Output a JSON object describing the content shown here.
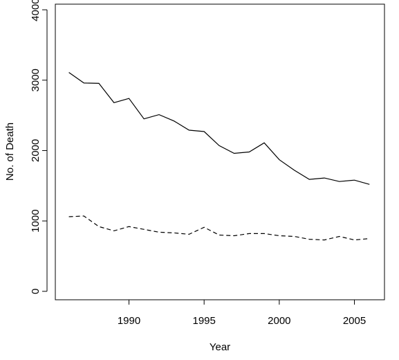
{
  "chart_data": {
    "type": "line",
    "title": "",
    "xlabel": "Year",
    "ylabel": "No. of Death",
    "xlim": [
      1985.1,
      2007.0
    ],
    "ylim": [
      -120,
      4080
    ],
    "x_ticks": [
      1990,
      1995,
      2000,
      2005
    ],
    "y_ticks": [
      0,
      1000,
      2000,
      3000,
      4000
    ],
    "grid": false,
    "legend": "none",
    "x": [
      1986,
      1987,
      1988,
      1989,
      1990,
      1991,
      1992,
      1993,
      1994,
      1995,
      1996,
      1997,
      1998,
      1999,
      2000,
      2001,
      2002,
      2003,
      2004,
      2005,
      2006
    ],
    "series": [
      {
        "line_style": "solid",
        "color": "#000000",
        "values": [
          3110,
          2960,
          2955,
          2680,
          2740,
          2450,
          2510,
          2420,
          2290,
          2270,
          2070,
          1960,
          1980,
          2110,
          1870,
          1720,
          1590,
          1610,
          1560,
          1580,
          1520
        ]
      },
      {
        "line_style": "dashed",
        "color": "#000000",
        "values": [
          1060,
          1070,
          920,
          860,
          920,
          880,
          840,
          830,
          810,
          910,
          800,
          790,
          820,
          820,
          790,
          780,
          740,
          730,
          780,
          730,
          750
        ]
      }
    ]
  }
}
